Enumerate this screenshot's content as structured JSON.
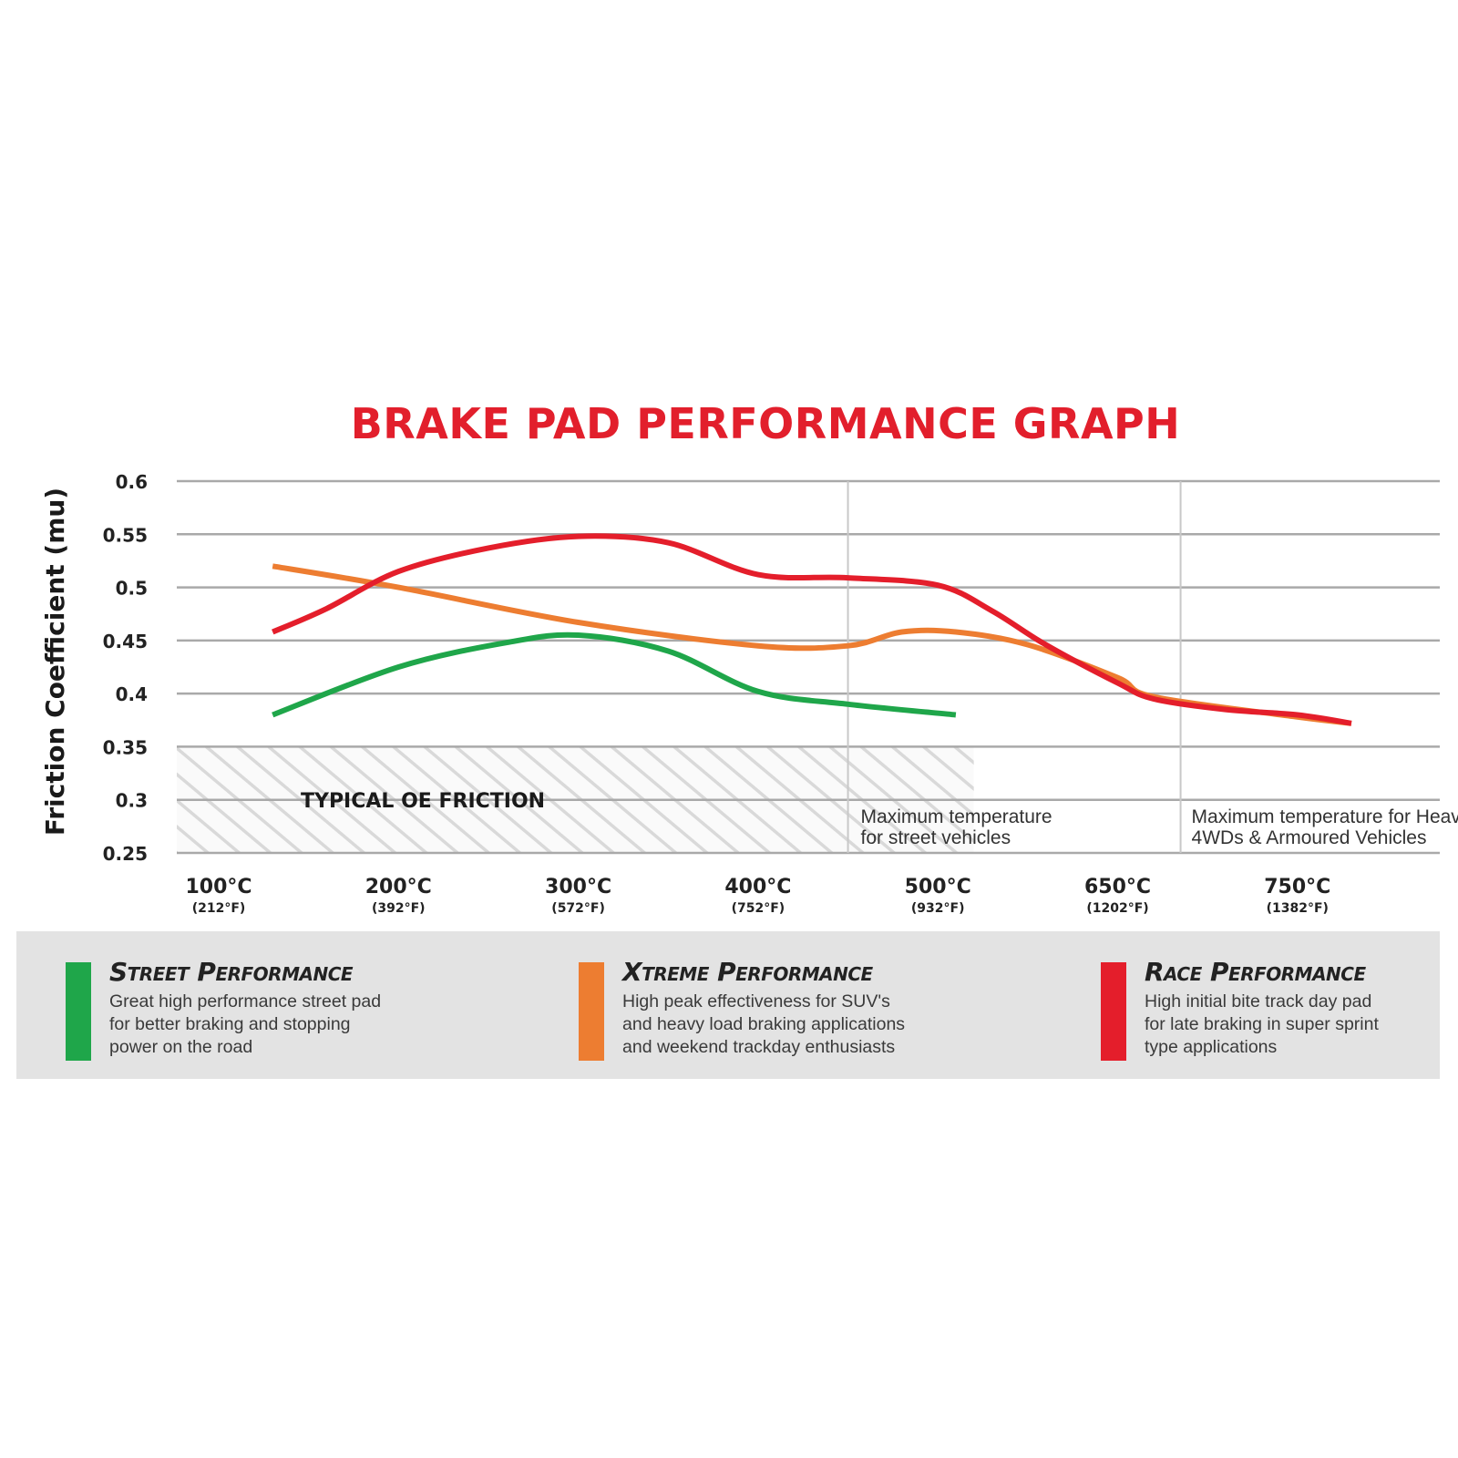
{
  "chart_data": {
    "type": "line",
    "title": "BRAKE PAD PERFORMANCE GRAPH",
    "ylabel": "Friction Coefficient (mu)",
    "ylim": [
      0.25,
      0.6
    ],
    "yticks": [
      "0.6",
      "0.55",
      "0.5",
      "0.45",
      "0.4",
      "0.35",
      "0.3",
      "0.25"
    ],
    "categories": [
      {
        "c": "100°C",
        "f": "(212°F)"
      },
      {
        "c": "200°C",
        "f": "(392°F)"
      },
      {
        "c": "300°C",
        "f": "(572°F)"
      },
      {
        "c": "400°C",
        "f": "(752°F)"
      },
      {
        "c": "500°C",
        "f": "(932°F)"
      },
      {
        "c": "650°C",
        "f": "(1202°F)"
      },
      {
        "c": "750°C",
        "f": "(1382°F)"
      }
    ],
    "grid": true,
    "series": [
      {
        "name": "Street Performance",
        "color": "#1fa64a",
        "points": [
          [
            0.3,
            0.38
          ],
          [
            1.0,
            0.425
          ],
          [
            1.6,
            0.448
          ],
          [
            2.0,
            0.455
          ],
          [
            2.5,
            0.44
          ],
          [
            3.0,
            0.402
          ],
          [
            3.5,
            0.39
          ],
          [
            4.1,
            0.38
          ]
        ]
      },
      {
        "name": "Xtreme Performance",
        "color": "#ed7d31",
        "points": [
          [
            0.3,
            0.52
          ],
          [
            1.0,
            0.5
          ],
          [
            2.0,
            0.467
          ],
          [
            3.0,
            0.445
          ],
          [
            3.5,
            0.445
          ],
          [
            3.8,
            0.458
          ],
          [
            4.1,
            0.458
          ],
          [
            4.5,
            0.446
          ],
          [
            5.0,
            0.415
          ],
          [
            5.2,
            0.397
          ],
          [
            6.0,
            0.378
          ],
          [
            6.3,
            0.372
          ]
        ]
      },
      {
        "name": "Race Performance",
        "color": "#e41e2b",
        "points": [
          [
            0.3,
            0.458
          ],
          [
            0.6,
            0.48
          ],
          [
            1.0,
            0.515
          ],
          [
            1.5,
            0.537
          ],
          [
            2.0,
            0.548
          ],
          [
            2.5,
            0.542
          ],
          [
            3.0,
            0.512
          ],
          [
            3.5,
            0.509
          ],
          [
            4.0,
            0.502
          ],
          [
            4.3,
            0.478
          ],
          [
            4.6,
            0.446
          ],
          [
            5.0,
            0.41
          ],
          [
            5.2,
            0.395
          ],
          [
            5.6,
            0.385
          ],
          [
            6.0,
            0.38
          ],
          [
            6.3,
            0.372
          ]
        ]
      }
    ],
    "bands": {
      "typical_oe": {
        "label": "TYPICAL OE FRICTION",
        "ymin": 0.25,
        "ymax": 0.35,
        "x_end": 4.2
      },
      "street_max": {
        "line1": "Maximum temperature",
        "line2": "for street vehicles",
        "x": 3.5
      },
      "heavy_max": {
        "line1": "Maximum temperature for Heavy towing,",
        "line2": "4WDs & Armoured Vehicles",
        "x": 5.35
      }
    }
  },
  "legend": [
    {
      "name": "Street Performance",
      "color": "#1fa64a",
      "lines": [
        "Great high performance street pad",
        "for better braking and stopping",
        "power on the road"
      ]
    },
    {
      "name": "Xtreme Performance",
      "color": "#ed7d31",
      "lines": [
        "High peak effectiveness for SUV's",
        "and heavy load braking applications",
        "and weekend trackday enthusiasts"
      ]
    },
    {
      "name": "Race Performance",
      "color": "#e41e2b",
      "lines": [
        "High initial bite track day pad",
        "for late braking in super sprint",
        "type applications"
      ]
    }
  ]
}
